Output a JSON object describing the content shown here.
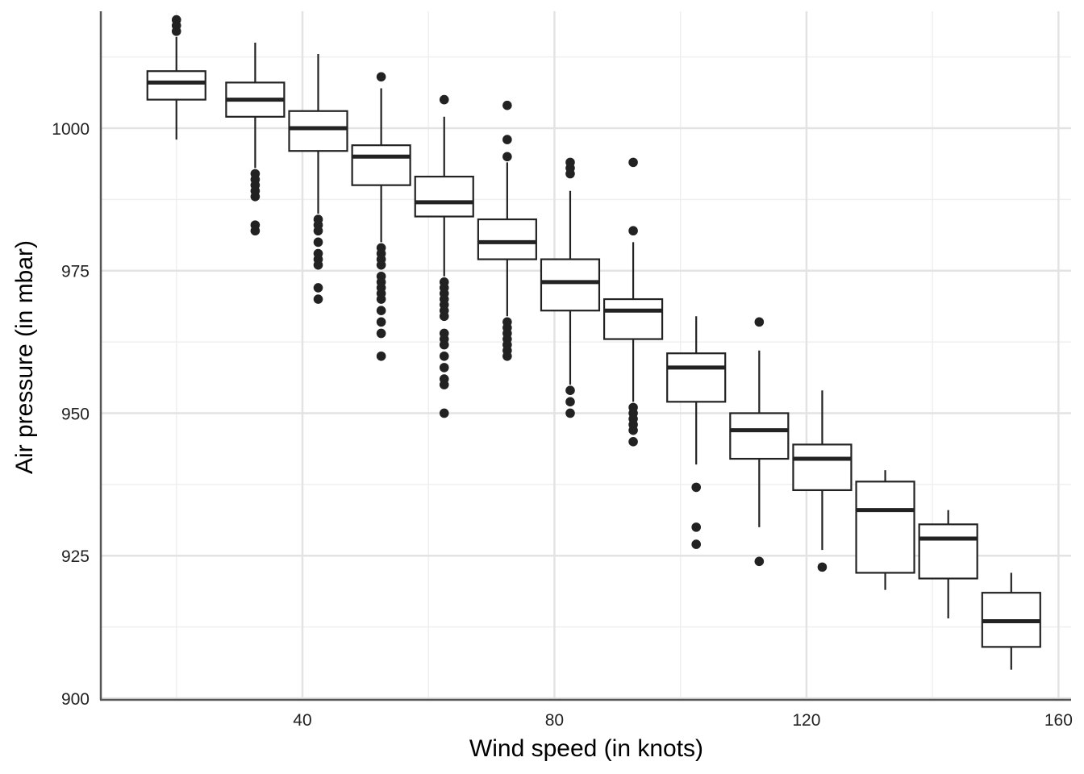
{
  "chart_data": {
    "type": "boxplot",
    "title": "",
    "xlabel": "Wind speed (in knots)",
    "ylabel": "Air pressure (in mbar)",
    "xlim": [
      8,
      162
    ],
    "ylim": [
      900,
      1020.5
    ],
    "x_ticks": [
      40,
      80,
      120,
      160
    ],
    "x_tick_labels": [
      "40",
      "80",
      "120",
      "160"
    ],
    "y_ticks": [
      900,
      925,
      950,
      975,
      1000
    ],
    "y_tick_labels": [
      "900",
      "925",
      "950",
      "975",
      "1000"
    ],
    "grid": true,
    "legend": "none",
    "colors": {
      "background": "#ffffff",
      "major_grid": "#e3e3e3",
      "minor_grid": "#efefef",
      "axis": "#555555",
      "box": "#222222",
      "points": "#222222"
    },
    "boxes": [
      {
        "x": 20,
        "min": 998,
        "q1": 1005,
        "median": 1008,
        "q3": 1010,
        "max": 1016,
        "outliers": [
          1017,
          1018,
          1019
        ]
      },
      {
        "x": 32.5,
        "min": 993,
        "q1": 1002,
        "median": 1005,
        "q3": 1008,
        "max": 1015,
        "outliers": [
          982,
          983,
          988,
          989,
          990,
          991,
          992
        ]
      },
      {
        "x": 42.5,
        "min": 985,
        "q1": 996,
        "median": 1000,
        "q3": 1003,
        "max": 1013,
        "outliers": [
          970,
          972,
          976,
          977,
          978,
          980,
          982,
          983,
          984
        ]
      },
      {
        "x": 52.5,
        "min": 980,
        "q1": 990,
        "median": 995,
        "q3": 997,
        "max": 1007,
        "outliers": [
          960,
          964,
          966,
          968,
          970,
          971,
          972,
          973,
          974,
          976,
          977,
          978,
          979,
          1009
        ]
      },
      {
        "x": 62.5,
        "min": 974,
        "q1": 984.5,
        "median": 987,
        "q3": 991.5,
        "max": 1002,
        "outliers": [
          950,
          955,
          956,
          958,
          960,
          962,
          963,
          964,
          967,
          968,
          969,
          970,
          971,
          972,
          973,
          1005
        ]
      },
      {
        "x": 72.5,
        "min": 967,
        "q1": 977,
        "median": 980,
        "q3": 984,
        "max": 994,
        "outliers": [
          960,
          961,
          962,
          963,
          964,
          965,
          966,
          995,
          998,
          1004
        ]
      },
      {
        "x": 82.5,
        "min": 955,
        "q1": 968,
        "median": 973,
        "q3": 977,
        "max": 989,
        "outliers": [
          950,
          952,
          954,
          992,
          993,
          994
        ]
      },
      {
        "x": 92.5,
        "min": 952,
        "q1": 963,
        "median": 968,
        "q3": 970,
        "max": 980,
        "outliers": [
          945,
          947,
          948,
          949,
          950,
          951,
          982,
          994
        ]
      },
      {
        "x": 102.5,
        "min": 941,
        "q1": 952,
        "median": 958,
        "q3": 960.5,
        "max": 967,
        "outliers": [
          927,
          930,
          937
        ]
      },
      {
        "x": 112.5,
        "min": 930,
        "q1": 942,
        "median": 947,
        "q3": 950,
        "max": 961,
        "outliers": [
          924,
          966
        ]
      },
      {
        "x": 122.5,
        "min": 926,
        "q1": 936.5,
        "median": 942,
        "q3": 944.5,
        "max": 954,
        "outliers": [
          923
        ]
      },
      {
        "x": 132.5,
        "min": 919,
        "q1": 922,
        "median": 933,
        "q3": 938,
        "max": 940,
        "outliers": []
      },
      {
        "x": 142.5,
        "min": 914,
        "q1": 921,
        "median": 928,
        "q3": 930.5,
        "max": 933,
        "outliers": []
      },
      {
        "x": 152.5,
        "min": 905,
        "q1": 909,
        "median": 913.5,
        "q3": 918.5,
        "max": 922,
        "outliers": []
      }
    ]
  }
}
